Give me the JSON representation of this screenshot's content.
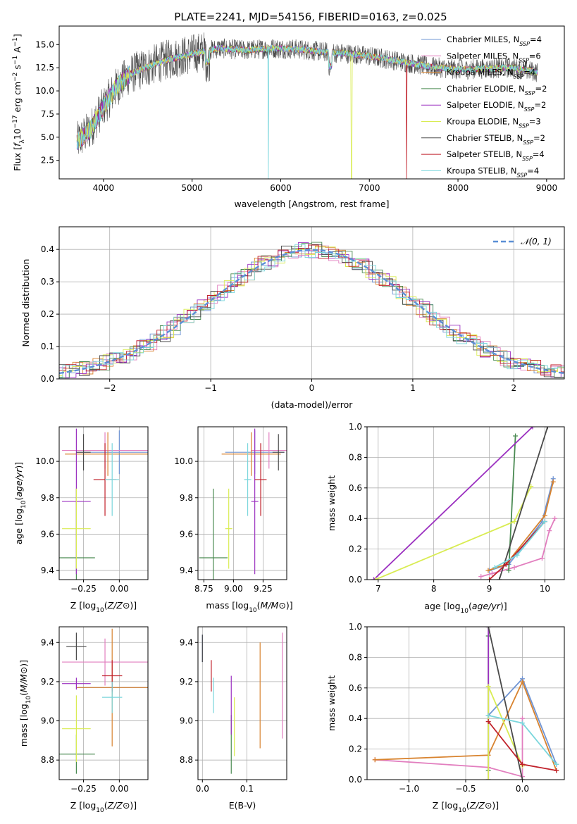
{
  "figure_title": "PLATE=2241, MJD=54156, FIBERID=0163, z=0.025",
  "legend_entries": [
    {
      "name": "Chabrier MILES, N",
      "sub": "SSP",
      "tail": "=4",
      "color": "#6f94d4"
    },
    {
      "name": "Salpeter MILES, N",
      "sub": "SSP",
      "tail": "=6",
      "color": "#e27fbf"
    },
    {
      "name": "Kroupa MILES, N",
      "sub": "SSP",
      "tail": "=4",
      "color": "#d8832f"
    },
    {
      "name": "Chabrier ELODIE, N",
      "sub": "SSP",
      "tail": "=2",
      "color": "#4a8a52"
    },
    {
      "name": "Salpeter ELODIE, N",
      "sub": "SSP",
      "tail": "=2",
      "color": "#9b30c0"
    },
    {
      "name": "Kroupa ELODIE, N",
      "sub": "SSP",
      "tail": "=3",
      "color": "#d9ec52"
    },
    {
      "name": "Chabrier STELIB, N",
      "sub": "SSP",
      "tail": "=2",
      "color": "#4a4a4a"
    },
    {
      "name": "Salpeter STELIB, N",
      "sub": "SSP",
      "tail": "=4",
      "color": "#c0202a"
    },
    {
      "name": "Kroupa STELIB, N",
      "sub": "SSP",
      "tail": "=4",
      "color": "#7ad6dc"
    }
  ],
  "chart_data": [
    {
      "id": "spectrum",
      "type": "line",
      "xlabel": "wavelength [Angstrom, rest frame]",
      "ylabel": "Flux [f_λ 10^-17 erg cm^-2 s^-1 A^-1]",
      "xlim": [
        3500,
        9200
      ],
      "ylim": [
        0.5,
        17.0
      ],
      "xticks": [
        4000,
        5000,
        6000,
        7000,
        8000,
        9000
      ],
      "yticks": [
        2.5,
        5.0,
        7.5,
        10.0,
        12.5,
        15.0
      ],
      "continuum": {
        "x": [
          3700,
          3850,
          3950,
          4050,
          4150,
          4300,
          4500,
          4700,
          5000,
          5300,
          5600,
          5900,
          6200,
          6500,
          6800,
          7100,
          7400,
          7700,
          8000,
          8300,
          8600,
          8900
        ],
        "y": [
          4.5,
          5.8,
          7.5,
          9.0,
          10.5,
          11.8,
          12.6,
          13.3,
          14.0,
          14.6,
          14.4,
          14.6,
          14.5,
          14.2,
          14.0,
          13.6,
          13.1,
          12.6,
          12.3,
          12.4,
          12.5,
          12.0
        ]
      },
      "dips": [
        {
          "x": 5860,
          "to": 0.5,
          "series": "Kroupa STELIB"
        },
        {
          "x": 6800,
          "to": 0.5,
          "series": "Kroupa ELODIE"
        },
        {
          "x": 7420,
          "to": 0.5,
          "series": "Salpeter STELIB"
        }
      ]
    },
    {
      "id": "residuals",
      "type": "histogram",
      "xlabel": "(data-model)/error",
      "ylabel": "Normed distribution",
      "xlim": [
        -2.5,
        2.5
      ],
      "ylim": [
        0,
        0.47
      ],
      "xticks": [
        -2,
        -1,
        0,
        1,
        2
      ],
      "yticks": [
        0.0,
        0.1,
        0.2,
        0.3,
        0.4
      ],
      "reference_label": "𝒩(0, 1)",
      "reference_color": "#5b8fd6",
      "bin_width": 0.1
    },
    {
      "id": "age_vs_Z",
      "type": "errorbar",
      "xlabel": "Z [log10(Z/Z⊙)]",
      "ylabel": "age [log10(age/yr)]",
      "xlim": [
        -0.42,
        0.2
      ],
      "ylim": [
        9.35,
        10.19
      ],
      "xticks": [
        -0.25,
        0.0
      ],
      "yticks": [
        9.4,
        9.6,
        9.8,
        10.0
      ],
      "points": [
        {
          "series": "Chabrier MILES",
          "x": 0.0,
          "y": 10.05,
          "xerr": 0.3,
          "yerr": 0.12
        },
        {
          "series": "Salpeter MILES",
          "x": -0.1,
          "y": 10.06,
          "xerr": 0.3,
          "yerr": 0.1
        },
        {
          "series": "Kroupa MILES",
          "x": -0.08,
          "y": 10.04,
          "xerr": 0.3,
          "yerr": 0.12
        },
        {
          "series": "Chabrier ELODIE",
          "x": -0.3,
          "y": 9.47,
          "xerr": 0.13,
          "yerr": 0.38
        },
        {
          "series": "Salpeter ELODIE",
          "x": -0.3,
          "y": 9.78,
          "xerr": 0.1,
          "yerr": 0.4
        },
        {
          "series": "Kroupa ELODIE",
          "x": -0.3,
          "y": 9.63,
          "xerr": 0.1,
          "yerr": 0.22
        },
        {
          "series": "Chabrier STELIB",
          "x": -0.25,
          "y": 10.05,
          "xerr": 0.05,
          "yerr": 0.1
        },
        {
          "series": "Salpeter STELIB",
          "x": -0.1,
          "y": 9.9,
          "xerr": 0.08,
          "yerr": 0.2
        },
        {
          "series": "Kroupa STELIB",
          "x": -0.05,
          "y": 9.9,
          "xerr": 0.05,
          "yerr": 0.2
        }
      ]
    },
    {
      "id": "age_vs_mass",
      "type": "errorbar",
      "xlabel": "mass [log10(M/M⊙)]",
      "ylabel": "",
      "xlim": [
        8.7,
        9.45
      ],
      "ylim": [
        9.35,
        10.19
      ],
      "xticks": [
        8.75,
        9.0,
        9.25
      ],
      "yticks": [
        9.4,
        9.6,
        9.8,
        10.0
      ],
      "points": [
        {
          "series": "Chabrier MILES",
          "x": 9.18,
          "y": 10.05,
          "xerr": 0.25,
          "yerr": 0.12
        },
        {
          "series": "Salpeter MILES",
          "x": 9.3,
          "y": 10.06,
          "xerr": 0.15,
          "yerr": 0.1
        },
        {
          "series": "Kroupa MILES",
          "x": 9.15,
          "y": 10.04,
          "xerr": 0.25,
          "yerr": 0.12
        },
        {
          "series": "Chabrier ELODIE",
          "x": 8.83,
          "y": 9.47,
          "xerr": 0.12,
          "yerr": 0.38
        },
        {
          "series": "Salpeter ELODIE",
          "x": 9.18,
          "y": 9.78,
          "xerr": 0.03,
          "yerr": 0.4
        },
        {
          "series": "Kroupa ELODIE",
          "x": 8.96,
          "y": 9.63,
          "xerr": 0.03,
          "yerr": 0.22
        },
        {
          "series": "Chabrier STELIB",
          "x": 9.38,
          "y": 10.05,
          "xerr": 0.05,
          "yerr": 0.1
        },
        {
          "series": "Salpeter STELIB",
          "x": 9.23,
          "y": 9.9,
          "xerr": 0.05,
          "yerr": 0.2
        },
        {
          "series": "Kroupa STELIB",
          "x": 9.12,
          "y": 9.9,
          "xerr": 0.03,
          "yerr": 0.2
        }
      ]
    },
    {
      "id": "weight_vs_age",
      "type": "line",
      "xlabel": "age [log10(age/yr)]",
      "ylabel": "mass weight",
      "xlim": [
        6.8,
        10.35
      ],
      "ylim": [
        0.0,
        1.0
      ],
      "xticks": [
        7,
        8,
        9,
        10
      ],
      "yticks": [
        0.0,
        0.2,
        0.4,
        0.6,
        0.8,
        1.0
      ],
      "series": [
        {
          "name": "Chabrier MILES",
          "x": [
            9.0,
            9.35,
            9.95,
            10.15
          ],
          "y": [
            0.06,
            0.1,
            0.38,
            0.66
          ]
        },
        {
          "name": "Salpeter MILES",
          "x": [
            8.85,
            9.05,
            9.45,
            9.95,
            10.08,
            10.18
          ],
          "y": [
            0.02,
            0.04,
            0.08,
            0.14,
            0.32,
            0.4
          ]
        },
        {
          "name": "Kroupa MILES",
          "x": [
            8.98,
            9.3,
            10.0,
            10.15
          ],
          "y": [
            0.06,
            0.1,
            0.42,
            0.64
          ]
        },
        {
          "name": "Chabrier ELODIE",
          "x": [
            9.35,
            9.47
          ],
          "y": [
            0.06,
            0.94
          ]
        },
        {
          "name": "Salpeter ELODIE",
          "x": [
            6.92,
            9.78
          ],
          "y": [
            0.0,
            1.0
          ]
        },
        {
          "name": "Kroupa ELODIE",
          "x": [
            6.95,
            9.45,
            9.75
          ],
          "y": [
            0.0,
            0.38,
            0.61
          ]
        },
        {
          "name": "Chabrier STELIB",
          "x": [
            9.18,
            10.05
          ],
          "y": [
            0.0,
            1.0
          ]
        },
        {
          "name": "Salpeter STELIB",
          "x": [
            9.0,
            9.3,
            10.0
          ],
          "y": [
            0.0,
            0.1,
            0.38
          ]
        },
        {
          "name": "Kroupa STELIB",
          "x": [
            9.1,
            9.5,
            10.0
          ],
          "y": [
            0.08,
            0.16,
            0.38
          ]
        }
      ]
    },
    {
      "id": "mass_vs_Z",
      "type": "errorbar",
      "xlabel": "Z [log10(Z/Z⊙)]",
      "ylabel": "mass [log10(M/M⊙)]",
      "xlim": [
        -0.42,
        0.2
      ],
      "ylim": [
        8.7,
        9.48
      ],
      "xticks": [
        -0.25,
        0.0
      ],
      "yticks": [
        8.8,
        9.0,
        9.2,
        9.4
      ],
      "points": [
        {
          "series": "Chabrier MILES",
          "x": -0.05,
          "y": 9.17,
          "xerr": 0.25,
          "yerr": 0.03
        },
        {
          "series": "Salpeter MILES",
          "x": -0.1,
          "y": 9.3,
          "xerr": 0.3,
          "yerr": 0.12
        },
        {
          "series": "Kroupa MILES",
          "x": -0.05,
          "y": 9.17,
          "xerr": 0.25,
          "yerr": 0.3
        },
        {
          "series": "Chabrier ELODIE",
          "x": -0.3,
          "y": 8.83,
          "xerr": 0.13,
          "yerr": 0.1
        },
        {
          "series": "Salpeter ELODIE",
          "x": -0.3,
          "y": 9.19,
          "xerr": 0.1,
          "yerr": 0.03
        },
        {
          "series": "Kroupa ELODIE",
          "x": -0.3,
          "y": 8.96,
          "xerr": 0.1,
          "yerr": 0.17
        },
        {
          "series": "Chabrier STELIB",
          "x": -0.3,
          "y": 9.38,
          "xerr": 0.07,
          "yerr": 0.07
        },
        {
          "series": "Salpeter STELIB",
          "x": -0.05,
          "y": 9.23,
          "xerr": 0.07,
          "yerr": 0.08
        },
        {
          "series": "Kroupa STELIB",
          "x": -0.05,
          "y": 9.12,
          "xerr": 0.07,
          "yerr": 0.08
        }
      ]
    },
    {
      "id": "mass_vs_ebv",
      "type": "errorbar",
      "xlabel": "E(B-V)",
      "ylabel": "",
      "xlim": [
        -0.01,
        0.19
      ],
      "ylim": [
        8.7,
        9.48
      ],
      "xticks": [
        0.0,
        0.1
      ],
      "yticks": [
        8.8,
        9.0,
        9.2,
        9.4
      ],
      "points": [
        {
          "series": "Chabrier MILES",
          "x": 0.0,
          "y": 9.37,
          "xerr": 0.0,
          "yerr": 0.07
        },
        {
          "series": "Salpeter MILES",
          "x": 0.18,
          "y": 9.18,
          "xerr": 0.0,
          "yerr": 0.27
        },
        {
          "series": "Kroupa MILES",
          "x": 0.13,
          "y": 9.13,
          "xerr": 0.0,
          "yerr": 0.27
        },
        {
          "series": "Chabrier ELODIE",
          "x": 0.065,
          "y": 8.88,
          "xerr": 0.0,
          "yerr": 0.15
        },
        {
          "series": "Salpeter ELODIE",
          "x": 0.065,
          "y": 9.08,
          "xerr": 0.0,
          "yerr": 0.15
        },
        {
          "series": "Kroupa ELODIE",
          "x": 0.072,
          "y": 8.97,
          "xerr": 0.0,
          "yerr": 0.15
        },
        {
          "series": "Chabrier STELIB",
          "x": 0.0,
          "y": 9.37,
          "xerr": 0.0,
          "yerr": 0.07
        },
        {
          "series": "Salpeter STELIB",
          "x": 0.02,
          "y": 9.23,
          "xerr": 0.0,
          "yerr": 0.08
        },
        {
          "series": "Kroupa STELIB",
          "x": 0.025,
          "y": 9.13,
          "xerr": 0.0,
          "yerr": 0.09
        }
      ]
    },
    {
      "id": "weight_vs_Z",
      "type": "line",
      "xlabel": "Z [log10(Z/Z⊙)]",
      "ylabel": "mass weight",
      "xlim": [
        -1.37,
        0.37
      ],
      "ylim": [
        0.0,
        1.0
      ],
      "xticks": [
        -1.0,
        -0.5,
        0.0
      ],
      "yticks": [
        0.0,
        0.2,
        0.4,
        0.6,
        0.8,
        1.0
      ],
      "series": [
        {
          "name": "Chabrier MILES",
          "x": [
            -0.3,
            0.0,
            0.3
          ],
          "y": [
            0.42,
            0.66,
            0.1
          ]
        },
        {
          "name": "Salpeter MILES",
          "x": [
            -1.3,
            -0.3,
            0.0,
            0.0
          ],
          "y": [
            0.13,
            0.08,
            0.02,
            0.4
          ]
        },
        {
          "name": "Kroupa MILES",
          "x": [
            -1.3,
            -0.3,
            0.0,
            0.3
          ],
          "y": [
            0.13,
            0.16,
            0.64,
            0.06
          ]
        },
        {
          "name": "Chabrier ELODIE",
          "x": [
            -0.3,
            -0.3
          ],
          "y": [
            0.06,
            0.94
          ]
        },
        {
          "name": "Salpeter ELODIE",
          "x": [
            -0.3,
            -0.3
          ],
          "y": [
            0.0,
            1.0
          ]
        },
        {
          "name": "Kroupa ELODIE",
          "x": [
            -0.3,
            -0.3,
            0.0
          ],
          "y": [
            0.0,
            0.61,
            0.09
          ]
        },
        {
          "name": "Chabrier STELIB",
          "x": [
            -0.3,
            0.0
          ],
          "y": [
            1.0,
            0.0
          ]
        },
        {
          "name": "Salpeter STELIB",
          "x": [
            -0.3,
            0.0,
            0.3
          ],
          "y": [
            0.38,
            0.1,
            0.06
          ]
        },
        {
          "name": "Kroupa STELIB",
          "x": [
            -0.3,
            0.0,
            0.3
          ],
          "y": [
            0.42,
            0.37,
            0.1
          ]
        }
      ]
    }
  ]
}
